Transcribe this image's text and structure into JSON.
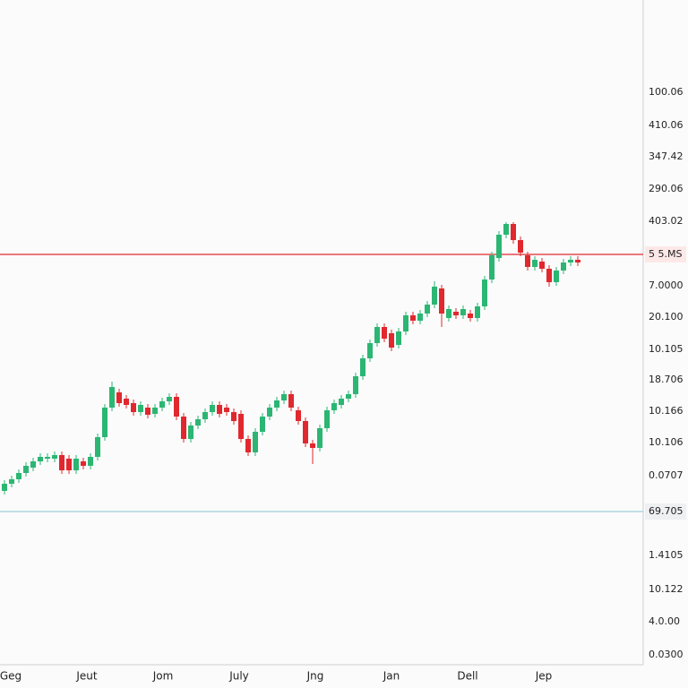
{
  "chart_data": {
    "type": "candlestick",
    "x_labels": [
      "Geg",
      "Jeut",
      "Jom",
      "July",
      "Jng",
      "Jan",
      "Dell",
      "Jep"
    ],
    "y_axis_labels": [
      "100.06",
      "410.06",
      "347.42",
      "290.06",
      "403.02",
      "7.0000",
      "20.100",
      "10.105",
      "18.706",
      "10.166",
      "10.106",
      "0.0707",
      "1.4105",
      "10.122",
      "4.0.00",
      "0.0300"
    ],
    "ylim": [
      0,
      740
    ],
    "up_color": "#2bb673",
    "down_color": "#e0282e",
    "open": [
      192,
      200,
      205,
      212,
      218,
      225,
      228,
      228,
      232,
      228,
      215,
      225,
      220,
      230,
      252,
      285,
      302,
      295,
      290,
      280,
      285,
      278,
      285,
      292,
      297,
      275,
      250,
      265,
      272,
      280,
      288,
      285,
      280,
      278,
      250,
      235,
      258,
      275,
      285,
      293,
      300,
      282,
      270,
      245,
      240,
      262,
      282,
      288,
      295,
      300,
      320,
      340,
      357,
      375,
      368,
      355,
      370,
      388,
      382,
      390,
      400,
      418,
      385,
      392,
      388,
      390,
      385,
      398,
      428,
      452,
      478,
      490,
      472,
      455,
      442,
      448,
      440,
      425,
      438,
      447,
      450
    ],
    "close": [
      200,
      205,
      212,
      220,
      225,
      230,
      230,
      232,
      215,
      215,
      228,
      220,
      230,
      252,
      285,
      308,
      290,
      288,
      280,
      288,
      277,
      285,
      292,
      297,
      275,
      250,
      265,
      272,
      280,
      288,
      278,
      280,
      270,
      250,
      235,
      258,
      275,
      285,
      293,
      300,
      285,
      270,
      245,
      240,
      262,
      282,
      290,
      295,
      300,
      320,
      340,
      357,
      375,
      362,
      352,
      370,
      388,
      382,
      390,
      400,
      420,
      390,
      395,
      388,
      395,
      385,
      398,
      428,
      455,
      478,
      490,
      472,
      458,
      442,
      450,
      440,
      425,
      438,
      447,
      450,
      447
    ],
    "high": [
      204,
      209,
      216,
      224,
      229,
      234,
      234,
      236,
      236,
      232,
      232,
      229,
      234,
      256,
      289,
      314,
      306,
      299,
      294,
      292,
      289,
      289,
      296,
      301,
      301,
      279,
      269,
      276,
      284,
      292,
      292,
      289,
      284,
      282,
      254,
      262,
      279,
      289,
      297,
      304,
      304,
      286,
      274,
      249,
      266,
      286,
      294,
      299,
      304,
      324,
      344,
      361,
      379,
      379,
      372,
      374,
      392,
      392,
      394,
      404,
      426,
      422,
      399,
      396,
      399,
      394,
      402,
      432,
      459,
      482,
      492,
      492,
      476,
      459,
      454,
      452,
      444,
      442,
      451,
      454,
      454
    ],
    "low": [
      188,
      196,
      201,
      208,
      214,
      221,
      224,
      224,
      211,
      211,
      211,
      216,
      216,
      226,
      248,
      281,
      286,
      284,
      276,
      276,
      273,
      274,
      281,
      288,
      271,
      246,
      246,
      261,
      268,
      276,
      274,
      276,
      266,
      246,
      231,
      231,
      254,
      271,
      281,
      289,
      281,
      266,
      241,
      222,
      236,
      258,
      278,
      284,
      291,
      296,
      316,
      336,
      353,
      358,
      348,
      351,
      366,
      378,
      378,
      386,
      396,
      375,
      381,
      384,
      384,
      381,
      381,
      394,
      424,
      448,
      474,
      468,
      454,
      438,
      438,
      436,
      420,
      421,
      434,
      443,
      443
    ],
    "price_lines": [
      {
        "value": 456,
        "label": "5 5.MS",
        "color": "#e0282e"
      },
      {
        "value": 169,
        "label": "69.705",
        "color": "#9ccfd8"
      }
    ]
  }
}
